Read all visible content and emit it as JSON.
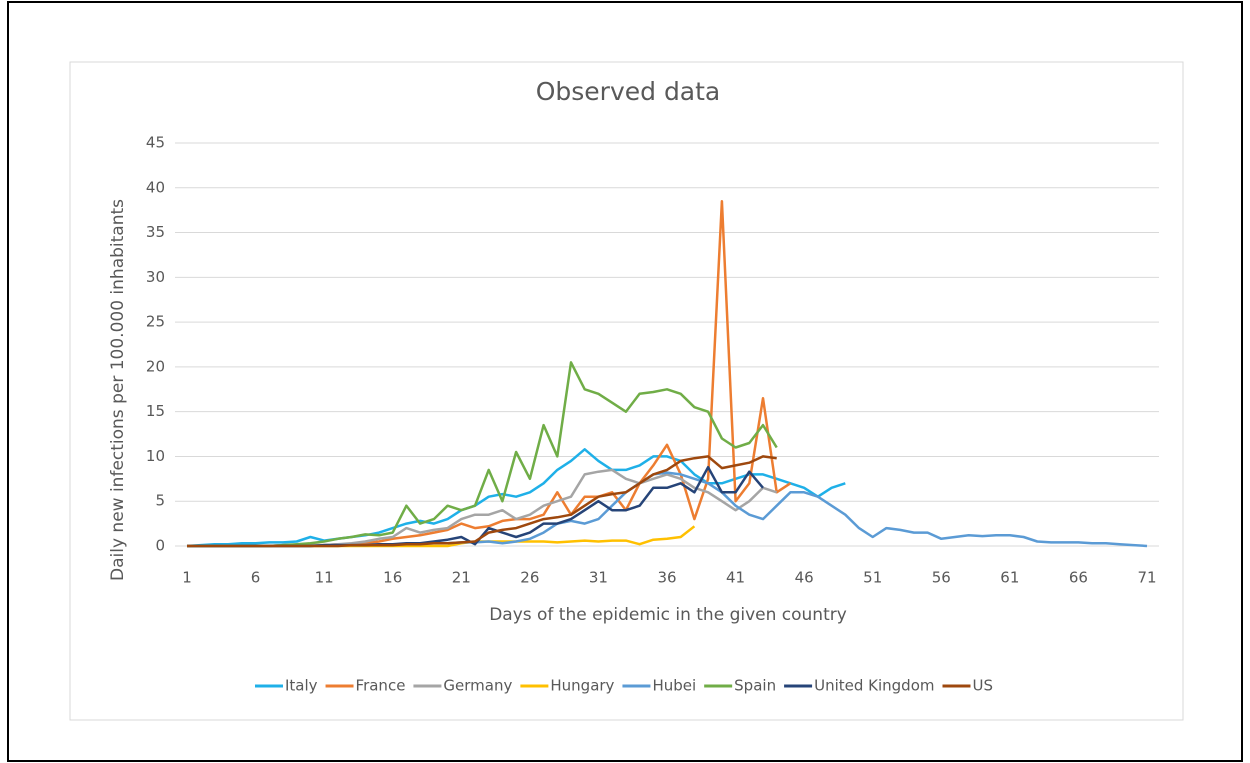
{
  "chart_data": {
    "type": "line",
    "title": "Observed data",
    "x_label": "Days of the epidemic in the given country",
    "y_label": "Daily new infections per 100.000 inhabitants",
    "x": [
      1,
      2,
      3,
      4,
      5,
      6,
      7,
      8,
      9,
      10,
      11,
      12,
      13,
      14,
      15,
      16,
      17,
      18,
      19,
      20,
      21,
      22,
      23,
      24,
      25,
      26,
      27,
      28,
      29,
      30,
      31,
      32,
      33,
      34,
      35,
      36,
      37,
      38,
      39,
      40,
      41,
      42,
      43,
      44,
      45,
      46,
      47,
      48,
      49,
      50,
      51,
      52,
      53,
      54,
      55,
      56,
      57,
      58,
      59,
      60,
      61,
      62,
      63,
      64,
      65,
      66,
      67,
      68,
      69,
      70,
      71
    ],
    "xlim": [
      1,
      71
    ],
    "xticks": [
      1,
      6,
      11,
      16,
      21,
      26,
      31,
      36,
      41,
      46,
      51,
      56,
      61,
      66,
      71
    ],
    "ylim": [
      0,
      45
    ],
    "yticks": [
      0,
      5,
      10,
      15,
      20,
      25,
      30,
      35,
      40,
      45
    ],
    "grid": true,
    "legend": "bottom",
    "series": [
      {
        "name": "Italy",
        "color": "#1fb0e8",
        "values": [
          0,
          0.1,
          0.2,
          0.2,
          0.3,
          0.3,
          0.4,
          0.4,
          0.5,
          1,
          0.6,
          0.8,
          1,
          1.2,
          1.5,
          2,
          2.5,
          2.8,
          2.5,
          3,
          4,
          4.5,
          5.5,
          5.8,
          5.5,
          6,
          7,
          8.5,
          9.5,
          10.8,
          9.5,
          8.5,
          8.5,
          9,
          10,
          10,
          9.5,
          8,
          7,
          7,
          7.5,
          8,
          8,
          7.5,
          7,
          6.5,
          5.5,
          6.5,
          7,
          null,
          null,
          null,
          null,
          null,
          null,
          null,
          null,
          null,
          null,
          null,
          null,
          null,
          null,
          null,
          null,
          null,
          null,
          null,
          null,
          null,
          null
        ]
      },
      {
        "name": "France",
        "color": "#ed7d31",
        "values": [
          0,
          0,
          0,
          0,
          0,
          0,
          0,
          0.1,
          0.1,
          0.1,
          0.1,
          0.2,
          0.2,
          0.3,
          0.5,
          0.8,
          1,
          1.2,
          1.5,
          1.8,
          2.5,
          2,
          2.2,
          2.8,
          3,
          3,
          3.5,
          6,
          3.5,
          5.5,
          5.5,
          6,
          4,
          7,
          9,
          11.3,
          8,
          3,
          7.5,
          38.5,
          5,
          7,
          16.5,
          6,
          7,
          null,
          null,
          null,
          null,
          null,
          null,
          null,
          null,
          null,
          null,
          null,
          null,
          null,
          null,
          null,
          null,
          null,
          null,
          null,
          null,
          null,
          null,
          null,
          null,
          null,
          null
        ]
      },
      {
        "name": "Germany",
        "color": "#a5a5a5",
        "values": [
          0,
          0,
          0,
          0,
          0,
          0,
          0,
          0.1,
          0.1,
          0.1,
          0.1,
          0.2,
          0.3,
          0.5,
          0.8,
          1,
          2,
          1.5,
          1.8,
          2,
          3,
          3.5,
          3.5,
          4,
          3,
          3.5,
          4.5,
          5,
          5.5,
          8,
          8.3,
          8.5,
          7.5,
          7,
          7.5,
          8,
          7.5,
          6.5,
          6,
          5,
          4,
          5,
          6.5,
          6,
          null,
          null,
          null,
          null,
          null,
          null,
          null,
          null,
          null,
          null,
          null,
          null,
          null,
          null,
          null,
          null,
          null,
          null,
          null,
          null,
          null,
          null,
          null,
          null,
          null,
          null,
          null
        ]
      },
      {
        "name": "Hungary",
        "color": "#ffc000",
        "values": [
          0,
          0,
          0,
          0,
          0,
          0,
          0,
          0,
          0,
          0,
          0,
          0,
          0,
          0,
          0,
          0,
          0,
          0,
          0,
          0,
          0.3,
          0.5,
          0.5,
          0.5,
          0.5,
          0.5,
          0.5,
          0.4,
          0.5,
          0.6,
          0.5,
          0.6,
          0.6,
          0.2,
          0.7,
          0.8,
          1,
          2.2,
          null,
          null,
          null,
          null,
          null,
          null,
          null,
          null,
          null,
          null,
          null,
          null,
          null,
          null,
          null,
          null,
          null,
          null,
          null,
          null,
          null,
          null,
          null,
          null,
          null,
          null,
          null,
          null,
          null,
          null,
          null,
          null,
          null
        ]
      },
      {
        "name": "Hubei",
        "color": "#5b9bd5",
        "values": [
          0,
          0,
          0,
          0,
          0,
          0,
          0,
          0,
          0,
          0,
          0.1,
          0.1,
          0.1,
          0.1,
          0.2,
          0.2,
          0.2,
          0.3,
          0.3,
          0.3,
          0.4,
          0.4,
          0.5,
          0.3,
          0.5,
          0.8,
          1.5,
          2.5,
          2.8,
          2.5,
          3,
          4.5,
          6,
          7,
          8,
          8.2,
          8,
          7.5,
          7,
          6,
          4.5,
          3.5,
          3,
          4.5,
          6,
          6,
          5.5,
          4.5,
          3.5,
          2,
          1,
          2,
          1.8,
          1.5,
          1.5,
          0.8,
          1,
          1.2,
          1.1,
          1.2,
          1.2,
          1,
          0.5,
          0.4,
          0.4,
          0.4,
          0.3,
          0.3,
          0.2,
          0.1,
          0
        ]
      },
      {
        "name": "Spain",
        "color": "#70ad47",
        "values": [
          0,
          0,
          0,
          0,
          0,
          0,
          0,
          0.1,
          0.2,
          0.3,
          0.5,
          0.8,
          1,
          1.3,
          1.2,
          1.5,
          4.5,
          2.5,
          3,
          4.5,
          4,
          4.5,
          8.5,
          5,
          10.5,
          7.5,
          13.5,
          10,
          20.5,
          17.5,
          17,
          16,
          15,
          17,
          17.2,
          17.5,
          17,
          15.5,
          15,
          12,
          11,
          11.5,
          13.5,
          11,
          null,
          null,
          null,
          null,
          null,
          null,
          null,
          null,
          null,
          null,
          null,
          null,
          null,
          null,
          null,
          null,
          null,
          null,
          null,
          null,
          null,
          null,
          null,
          null,
          null,
          null,
          null
        ]
      },
      {
        "name": "United Kingdom",
        "color": "#264478",
        "values": [
          0,
          0,
          0,
          0,
          0,
          0,
          0,
          0,
          0,
          0,
          0.1,
          0.1,
          0.1,
          0.1,
          0.2,
          0.2,
          0.3,
          0.3,
          0.5,
          0.7,
          1,
          0.2,
          2,
          1.5,
          1,
          1.5,
          2.5,
          2.5,
          3,
          4,
          5,
          4,
          4,
          4.5,
          6.5,
          6.5,
          7,
          6,
          8.8,
          6,
          6,
          8.3,
          6.5,
          null,
          null,
          null,
          null,
          null,
          null,
          null,
          null,
          null,
          null,
          null,
          null,
          null,
          null,
          null,
          null,
          null,
          null,
          null,
          null,
          null,
          null,
          null,
          null,
          null,
          null,
          null,
          null
        ]
      },
      {
        "name": "US",
        "color": "#9e480e",
        "values": [
          0,
          0,
          0,
          0,
          0,
          0,
          0,
          0,
          0,
          0,
          0,
          0,
          0.1,
          0.1,
          0.1,
          0.1,
          0.2,
          0.2,
          0.3,
          0.3,
          0.4,
          0.5,
          1.5,
          1.8,
          2,
          2.5,
          3,
          3.2,
          3.5,
          4.5,
          5.5,
          5.8,
          6,
          7,
          8,
          8.5,
          9.5,
          9.8,
          10,
          8.7,
          9,
          9.3,
          10,
          9.8,
          null,
          null,
          null,
          null,
          null,
          null,
          null,
          null,
          null,
          null,
          null,
          null,
          null,
          null,
          null,
          null,
          null,
          null,
          null,
          null,
          null,
          null,
          null,
          null,
          null,
          null,
          null
        ]
      }
    ]
  }
}
